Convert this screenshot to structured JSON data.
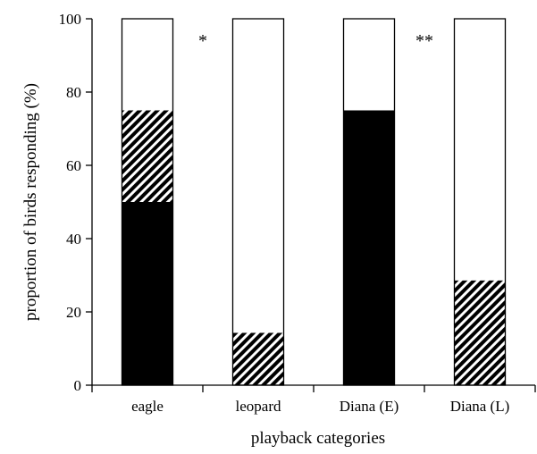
{
  "chart_data": {
    "type": "bar",
    "stacked": true,
    "percent": true,
    "categories": [
      "eagle",
      "leopard",
      "Diana (E)",
      "Diana (L)"
    ],
    "series": [
      {
        "values": [
          50,
          0,
          75,
          0
        ],
        "fill": "solid-black"
      },
      {
        "values": [
          25,
          14.3,
          0,
          28.6
        ],
        "fill": "hatched"
      },
      {
        "values": [
          25,
          85.7,
          25,
          71.4
        ],
        "fill": "white"
      }
    ],
    "ylabel": "proportion of birds responding (%)",
    "xlabel": "playback categories",
    "ylim": [
      0,
      100
    ],
    "yticks": [
      "0",
      "20",
      "40",
      "60",
      "80",
      "100"
    ],
    "annotations": [
      {
        "text": "*",
        "between": [
          "eagle",
          "leopard"
        ]
      },
      {
        "text": "**",
        "between": [
          "Diana (E)",
          "Diana (L)"
        ]
      }
    ],
    "grid": false,
    "legend": "none",
    "colors": {
      "solid": "#000000",
      "empty": "#ffffff",
      "hatch": "#000000"
    }
  }
}
